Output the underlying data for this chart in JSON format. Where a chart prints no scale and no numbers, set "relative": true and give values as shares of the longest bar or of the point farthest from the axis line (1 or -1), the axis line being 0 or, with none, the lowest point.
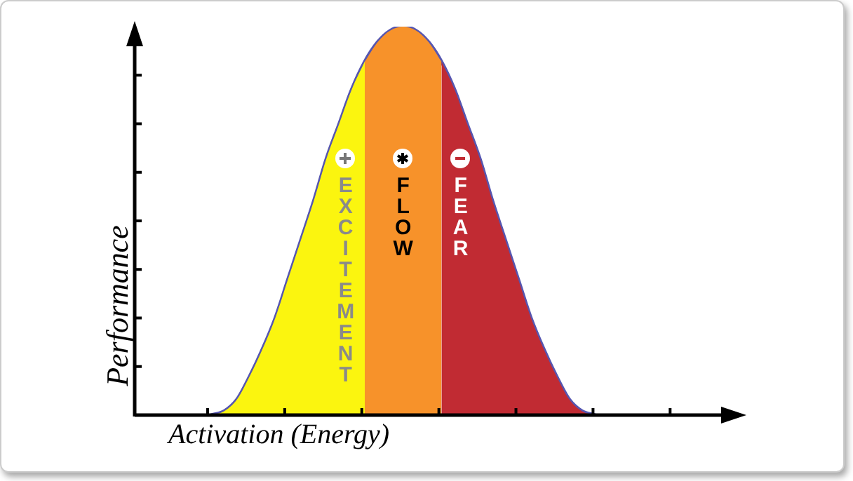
{
  "chart_data": {
    "type": "area",
    "relative": true,
    "xlabel": "Activation (Energy)",
    "ylabel": "Performance",
    "categories": [
      null,
      null,
      null,
      null,
      null,
      null,
      null,
      null,
      null,
      null,
      null,
      null,
      null,
      null,
      null,
      null,
      null,
      null,
      null,
      null,
      null,
      null,
      null,
      null,
      null,
      null,
      null,
      null,
      null,
      null,
      null,
      null,
      null,
      null,
      null,
      null,
      null,
      null,
      null,
      null,
      null,
      null,
      null,
      null,
      null,
      null
    ],
    "series": [
      {
        "color": "#fbf50f",
        "values": [
          null,
          null,
          null,
          null,
          null,
          null,
          0,
          0.01,
          0.04,
          0.1,
          0.17,
          0.25,
          0.35,
          0.45,
          0.55,
          0.66,
          0.75,
          0.84,
          0.91,
          null,
          null,
          null,
          null,
          null,
          null,
          null,
          null,
          null,
          null,
          null,
          null,
          null,
          null,
          null,
          null,
          null,
          null,
          null,
          null,
          null,
          null,
          null,
          null,
          null,
          null,
          null
        ]
      },
      {
        "color": "#f7922a",
        "values": [
          null,
          null,
          null,
          null,
          null,
          null,
          null,
          null,
          null,
          null,
          null,
          null,
          null,
          null,
          null,
          null,
          null,
          null,
          0.91,
          0.96,
          0.99,
          1,
          0.99,
          0.96,
          0.91,
          null,
          null,
          null,
          null,
          null,
          null,
          null,
          null,
          null,
          null,
          null,
          null,
          null,
          null,
          null,
          null,
          null,
          null,
          null,
          null,
          null
        ]
      },
      {
        "color": "#c12b33",
        "values": [
          null,
          null,
          null,
          null,
          null,
          null,
          null,
          null,
          null,
          null,
          null,
          null,
          null,
          null,
          null,
          null,
          null,
          null,
          null,
          null,
          null,
          null,
          null,
          null,
          0.91,
          0.84,
          0.75,
          0.66,
          0.55,
          0.45,
          0.35,
          0.25,
          0.17,
          0.1,
          0.04,
          0.01,
          0,
          null,
          null,
          null,
          null,
          null,
          null,
          null,
          null,
          null
        ]
      },
      {
        "type": "line",
        "color": "#5656b0",
        "values": [
          null,
          null,
          null,
          null,
          null,
          null,
          0,
          0.01,
          0.04,
          0.1,
          0.17,
          0.25,
          0.35,
          0.45,
          0.55,
          0.66,
          0.75,
          0.84,
          0.91,
          0.96,
          0.99,
          1,
          0.99,
          0.96,
          0.91,
          0.84,
          0.75,
          0.66,
          0.55,
          0.45,
          0.35,
          0.25,
          0.17,
          0.1,
          0.04,
          0.01,
          0,
          null,
          null,
          null,
          null,
          null,
          null,
          null,
          null,
          null
        ]
      }
    ],
    "annotations": [
      "EXCITEMENT",
      "FLOW",
      "FEAR"
    ],
    "tick_labels": false,
    "legend": false,
    "marker": "none",
    "line_style": "solid"
  }
}
